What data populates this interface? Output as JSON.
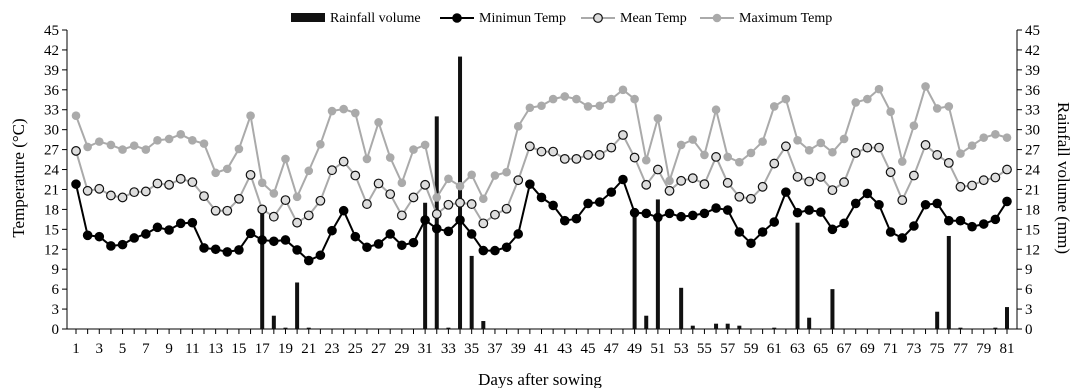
{
  "chart_data": {
    "type": "bar+line",
    "title": "",
    "xlabel": "Days after sowing",
    "ylabel_left": "Temperature (°C)",
    "ylabel_right": "Rainfall volume (mm)",
    "ylim_left": [
      0,
      45
    ],
    "ylim_right": [
      0,
      45
    ],
    "yticks": [
      0,
      3,
      6,
      9,
      12,
      15,
      18,
      21,
      24,
      27,
      30,
      33,
      36,
      39,
      42,
      45
    ],
    "xlim": [
      1,
      81
    ],
    "xtick_labels": [
      1,
      3,
      5,
      7,
      9,
      11,
      13,
      15,
      17,
      19,
      21,
      23,
      25,
      27,
      29,
      31,
      33,
      35,
      37,
      39,
      41,
      43,
      45,
      47,
      49,
      51,
      53,
      55,
      57,
      59,
      61,
      63,
      65,
      67,
      69,
      71,
      73,
      75,
      77,
      79,
      81
    ],
    "grid": false,
    "legend_position": "top-center",
    "x": [
      1,
      2,
      3,
      4,
      5,
      6,
      7,
      8,
      9,
      10,
      11,
      12,
      13,
      14,
      15,
      16,
      17,
      18,
      19,
      20,
      21,
      22,
      23,
      24,
      25,
      26,
      27,
      28,
      29,
      30,
      31,
      32,
      33,
      34,
      35,
      36,
      37,
      38,
      39,
      40,
      41,
      42,
      43,
      44,
      45,
      46,
      47,
      48,
      49,
      50,
      51,
      52,
      53,
      54,
      55,
      56,
      57,
      58,
      59,
      60,
      61,
      62,
      63,
      64,
      65,
      66,
      67,
      68,
      69,
      70,
      71,
      72,
      73,
      74,
      75,
      76,
      77,
      78,
      79,
      80,
      81
    ],
    "series": [
      {
        "name": "Rainfall volume",
        "kind": "bar",
        "axis": "right",
        "color": "#111111",
        "values": [
          0,
          0,
          0,
          0,
          0,
          0,
          0,
          0,
          0,
          0,
          0,
          0,
          0,
          0,
          0,
          0,
          18,
          2,
          0.2,
          7,
          0.2,
          0,
          0,
          0,
          0,
          0,
          0,
          0,
          0,
          0,
          19,
          32,
          0.2,
          41,
          11,
          1.2,
          0,
          0,
          0,
          0,
          0,
          0,
          0,
          0,
          0,
          0,
          0,
          0,
          18,
          2,
          19.5,
          0,
          6.2,
          0.5,
          0,
          0.8,
          0.8,
          0.5,
          0,
          0,
          0.2,
          0,
          16,
          1.7,
          0,
          6,
          0,
          0,
          0,
          0,
          0,
          0,
          0,
          0,
          2.6,
          14,
          0.2,
          0,
          0,
          0.2,
          3.3
        ]
      },
      {
        "name": "Minimun Temp",
        "kind": "line",
        "axis": "left",
        "color": "#000000",
        "marker_fill": "#000000",
        "values": [
          21.8,
          14.1,
          13.9,
          12.5,
          12.7,
          13.7,
          14.3,
          15.3,
          14.9,
          15.9,
          16,
          12.2,
          12,
          11.6,
          11.9,
          14.4,
          13.4,
          13.2,
          13.4,
          11.9,
          10.3,
          11.1,
          14.8,
          17.8,
          13.9,
          12.3,
          12.8,
          14.3,
          12.6,
          13,
          16.4,
          15.1,
          14.7,
          16.4,
          14.3,
          11.8,
          11.8,
          12.3,
          14.3,
          21.8,
          19.8,
          18.6,
          16.3,
          16.6,
          18.9,
          19.1,
          20.6,
          22.5,
          17.5,
          17.4,
          16.8,
          17.4,
          16.9,
          17.1,
          17.4,
          18.2,
          17.9,
          14.6,
          12.9,
          14.6,
          16.1,
          20.6,
          17.5,
          17.9,
          17.6,
          15,
          15.9,
          18.9,
          20.4,
          18.7,
          14.6,
          13.7,
          15.5,
          18.7,
          18.9,
          16.3,
          16.3,
          15.4,
          15.8,
          16.5,
          19.2
        ]
      },
      {
        "name": "Mean Temp",
        "kind": "line",
        "axis": "left",
        "color": "#aaaaaa",
        "marker_fill": "#dddddd",
        "values": [
          26.8,
          20.8,
          21.1,
          20.1,
          19.8,
          20.6,
          20.7,
          21.9,
          21.7,
          22.6,
          22.1,
          20,
          17.8,
          17.8,
          19.6,
          23.2,
          18,
          16.9,
          19.4,
          16,
          17.1,
          19.3,
          23.9,
          25.2,
          23.1,
          18.8,
          21.9,
          20.3,
          17.1,
          19.8,
          21.7,
          17.3,
          18.7,
          19,
          18.8,
          15.9,
          17.2,
          18.1,
          22.4,
          27.5,
          26.7,
          26.7,
          25.6,
          25.6,
          26.2,
          26.2,
          27.3,
          29.2,
          25.8,
          21.7,
          24,
          20.8,
          22.3,
          22.7,
          21.8,
          25.9,
          22,
          19.9,
          19.6,
          21.4,
          24.9,
          27.5,
          22.9,
          22.2,
          22.9,
          20.9,
          22.1,
          26.5,
          27.3,
          27.3,
          23.6,
          19.4,
          23.1,
          27.7,
          26.2,
          25,
          21.4,
          21.6,
          22.4,
          22.8,
          24
        ]
      },
      {
        "name": "Maximum Temp",
        "kind": "line",
        "axis": "left",
        "color": "#aaaaaa",
        "marker_fill": "#aaaaaa",
        "values": [
          32.1,
          27.4,
          28.2,
          27.7,
          27,
          27.6,
          27,
          28.4,
          28.6,
          29.3,
          28.4,
          27.9,
          23.5,
          24.1,
          27.1,
          32.1,
          22,
          20.4,
          25.6,
          19.9,
          23.8,
          27.8,
          32.8,
          33.1,
          32.5,
          25.6,
          31.1,
          25.8,
          22,
          27,
          27.7,
          19.8,
          22.6,
          21.5,
          23.2,
          19.6,
          23.1,
          23.6,
          30.5,
          33.3,
          33.6,
          34.6,
          35,
          34.6,
          33.5,
          33.6,
          34.6,
          36,
          34.6,
          25.4,
          31.7,
          22.3,
          27.7,
          28.5,
          26.2,
          33,
          25.9,
          25.1,
          26.5,
          28.2,
          33.5,
          34.6,
          28.4,
          26.9,
          28,
          26.6,
          28.6,
          34.1,
          34.6,
          36.1,
          32.7,
          25.2,
          30.6,
          36.5,
          33.2,
          33.5,
          26.4,
          27.6,
          28.8,
          29.3,
          28.8
        ]
      }
    ]
  }
}
